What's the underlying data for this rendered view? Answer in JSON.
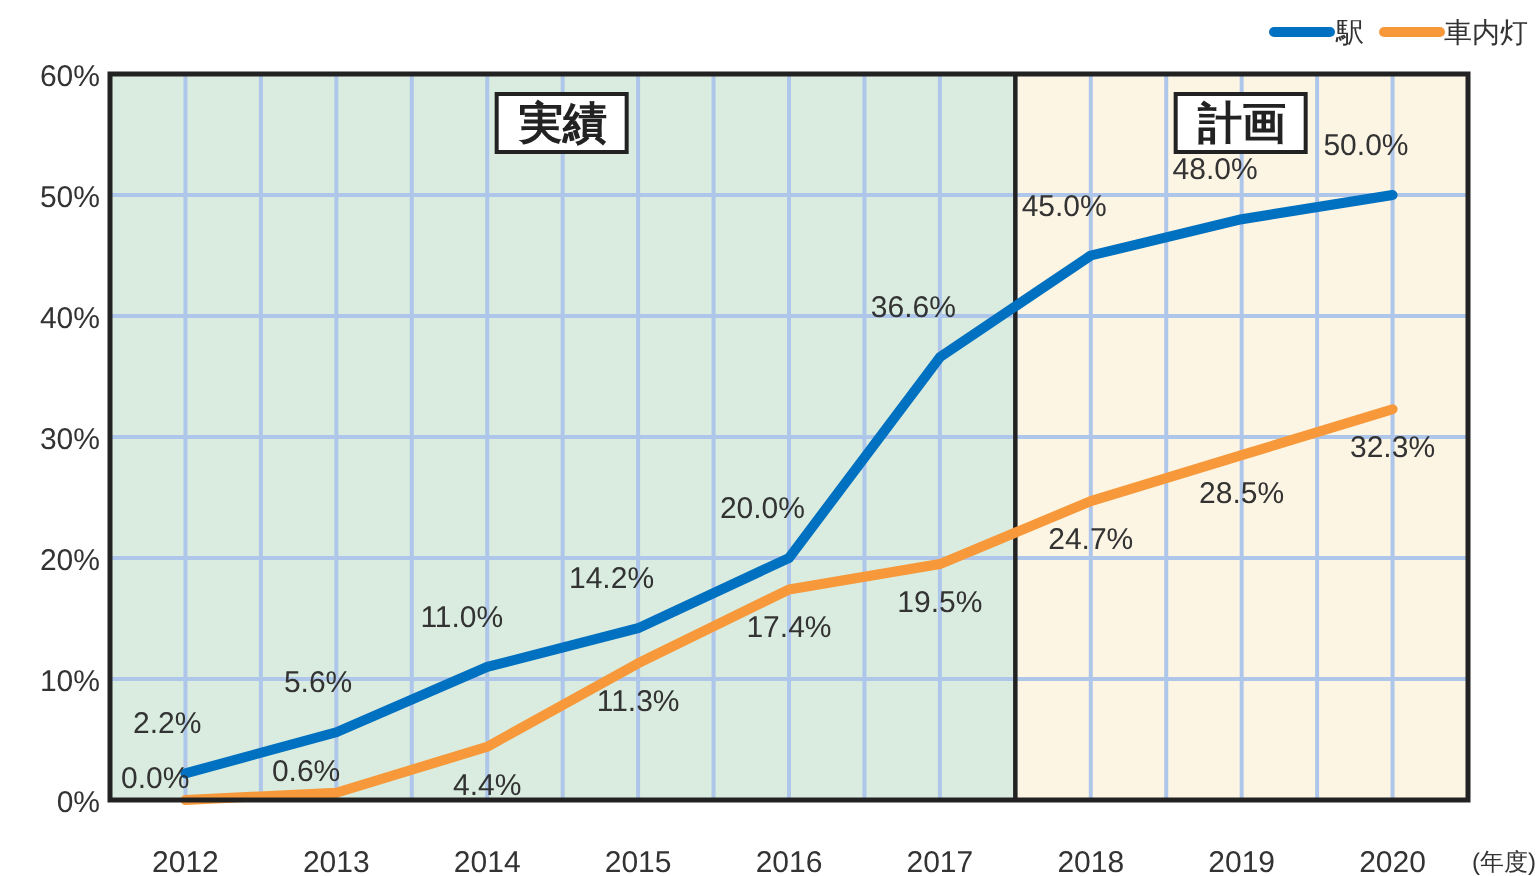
{
  "chart_data": {
    "type": "line",
    "xlabel": "(年度)",
    "x": [
      2012,
      2013,
      2014,
      2015,
      2016,
      2017,
      2018,
      2019,
      2020
    ],
    "xlim": [
      2011.5,
      2020.5
    ],
    "xticks": [
      {
        "value": 2011.5,
        "label": null
      },
      2012,
      {
        "value": 2012.5,
        "label": null
      },
      2013,
      {
        "value": 2013.5,
        "label": null
      },
      2014,
      {
        "value": 2014.5,
        "label": null
      },
      2015,
      {
        "value": 2015.5,
        "label": null
      },
      2016,
      {
        "value": 2016.5,
        "label": null
      },
      2017,
      {
        "value": 2017.5,
        "label": null
      },
      2018,
      {
        "value": 2018.5,
        "label": null
      },
      2019,
      {
        "value": 2019.5,
        "label": null
      },
      2020,
      {
        "value": 2020.5,
        "label": null
      }
    ],
    "ylim": [
      0,
      60
    ],
    "yticks": [
      {
        "value": 0,
        "label": "0%"
      },
      {
        "value": 10,
        "label": "10%"
      },
      {
        "value": 20,
        "label": "20%"
      },
      {
        "value": 30,
        "label": "30%"
      },
      {
        "value": 40,
        "label": "40%"
      },
      {
        "value": 50,
        "label": "50%"
      },
      {
        "value": 60,
        "label": "60%"
      }
    ],
    "grid": true,
    "legend": "top right",
    "marker": "none",
    "line_style": "solid",
    "bands": [
      {
        "axis": "x",
        "from": 2011.5,
        "to": 2017.5,
        "label": "実績",
        "color": "#d9ecdf"
      },
      {
        "axis": "x",
        "from": 2017.5,
        "to": 2020.5,
        "label": "計画",
        "color": "#fdf5e4"
      }
    ],
    "series": [
      {
        "name": "駅",
        "color": "#0070c0",
        "values": [
          2.2,
          5.6,
          11.0,
          14.2,
          20.0,
          36.6,
          45.0,
          48.0,
          50.0
        ],
        "value_labels": [
          "2.2%",
          "5.6%",
          "11.0%",
          "14.2%",
          "20.0%",
          "36.6%",
          "45.0%",
          "48.0%",
          "50.0%"
        ]
      },
      {
        "name": "車内灯",
        "color": "#f7993a",
        "values": [
          0.0,
          0.6,
          4.4,
          11.3,
          17.4,
          19.5,
          24.7,
          28.5,
          32.3
        ],
        "value_labels": [
          "0.0%",
          "0.6%",
          "4.4%",
          "11.3%",
          "17.4%",
          "19.5%",
          "24.7%",
          "28.5%",
          "32.3%"
        ]
      }
    ]
  }
}
